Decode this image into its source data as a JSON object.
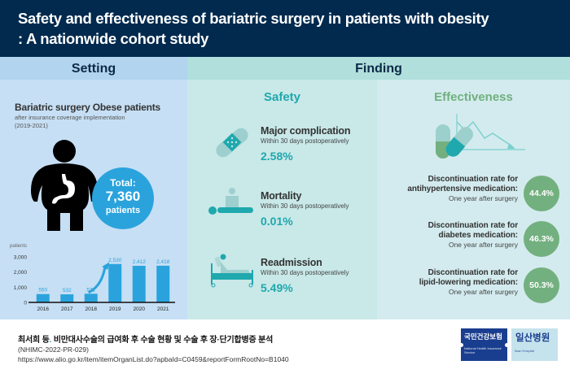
{
  "header": {
    "title_line1": "Safety and effectiveness of bariatric surgery in patients with obesity",
    "title_line2": ": A nationwide cohort study"
  },
  "bands": {
    "setting": "Setting",
    "finding": "Finding"
  },
  "setting": {
    "title": "Bariatric surgery Obese patients",
    "subtitle": "after insurance coverage implementation",
    "period": "(2019-2021)",
    "figure_icon": "obese-person-with-stomach-icon",
    "total": {
      "label": "Total:",
      "value": "7,360",
      "unit": "patients"
    }
  },
  "chart_data": {
    "type": "bar",
    "title": "",
    "ylabel": "patients",
    "xlabel": "",
    "categories": [
      "2016",
      "2017",
      "2018",
      "2019",
      "2020",
      "2021"
    ],
    "values": [
      550,
      532,
      571,
      2530,
      2412,
      2418
    ],
    "value_labels": [
      "550",
      "532",
      "571",
      "2,530",
      "2,412",
      "2,418"
    ],
    "ylim": [
      0,
      3000
    ],
    "yticks": [
      0,
      1000,
      2000,
      3000
    ],
    "ytick_labels": [
      "0",
      "1,000",
      "2,000",
      "3,000"
    ],
    "grid": false,
    "legend": "none",
    "annotation": "upward-arrow between 2018 and 2019",
    "bar_color": "#2aa3dd"
  },
  "safety": {
    "title": "Safety",
    "items": [
      {
        "name": "Major complication",
        "desc": "Within 30 days postoperatively",
        "value": "2.58%",
        "icon": "bandage-icon"
      },
      {
        "name": "Mortality",
        "desc": "Within 30 days postoperatively",
        "value": "0.01%",
        "icon": "mortality-icon"
      },
      {
        "name": "Readmission",
        "desc": "Within 30 days postoperatively",
        "value": "5.49%",
        "icon": "hospital-bed-icon"
      }
    ]
  },
  "effectiveness": {
    "title": "Effectiveness",
    "icon": "pills-declining-chart-icon",
    "items": [
      {
        "line1": "Discontinuation rate for",
        "line2": "antihypertensive medication:",
        "line3": "One year after surgery",
        "value": "44.4%"
      },
      {
        "line1": "Discontinuation rate for",
        "line2": "diabetes medication:",
        "line3": "One year after surgery",
        "value": "46.3%"
      },
      {
        "line1": "Discontinuation rate for",
        "line2": "lipid-lowering medication:",
        "line3": "One year after surgery",
        "value": "50.3%"
      }
    ]
  },
  "footer": {
    "citation_author": "최서희 등",
    "citation_dot": ".",
    "citation_title": " 비만대사수술의 급여화 후 수술 현황 및 수술 후 장·단기합병증 분석",
    "report_id": "(NHIMC-2022-PR-029)",
    "url": "https://www.alio.go.kr/item/itemOrganList.do?apbaId=C0459&reportFormRootNo=B1040"
  },
  "logos": {
    "nhis_korean": "국민건강보험",
    "nhis_english": "National Health Insurance Service",
    "ilsan_korean": "일산병원",
    "ilsan_english": "Ilsan Hospital"
  },
  "colors": {
    "header_bg": "#022a4e",
    "setting_bg": "#c6dff4",
    "safety_bg": "#c9e8e8",
    "effect_bg": "#d3ebee",
    "teal_accent": "#1fa8ad",
    "green_accent": "#73b07f",
    "blue_accent": "#2aa3dd"
  }
}
